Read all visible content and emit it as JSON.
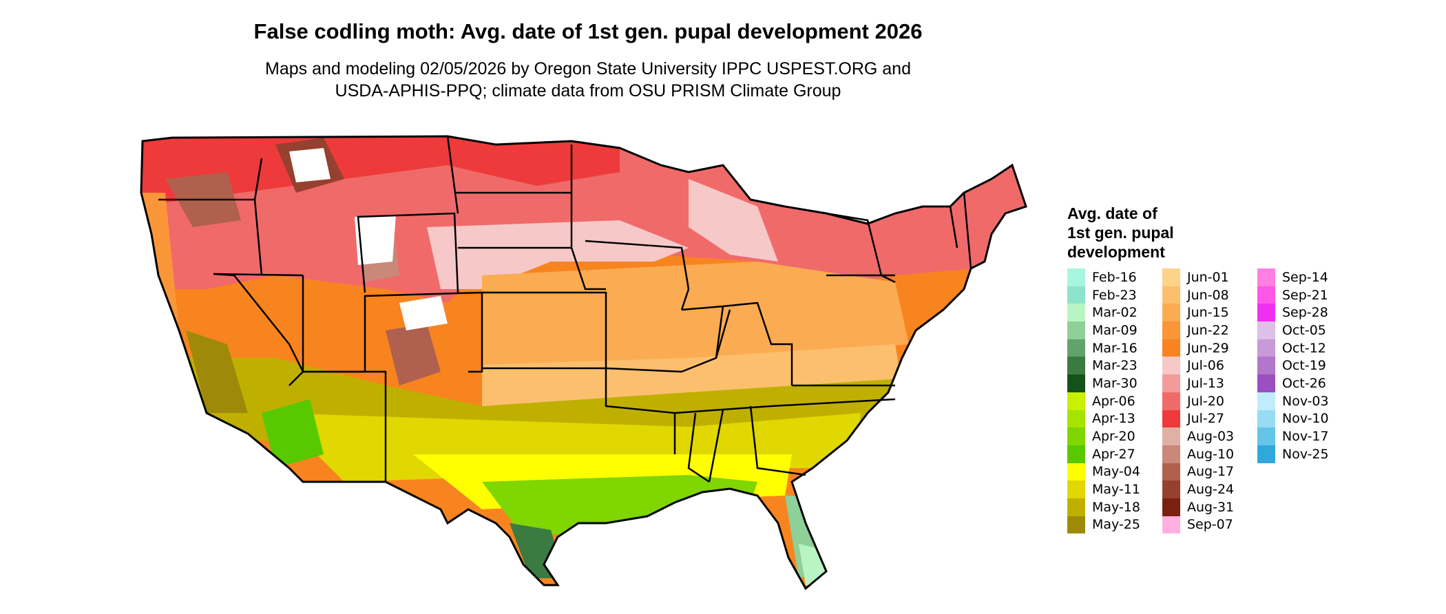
{
  "title": "False codling moth: Avg. date of 1st gen. pupal development 2026",
  "subtitle_lines": [
    "Maps and modeling 02/05/2026 by Oregon State University IPPC USPEST.ORG and",
    "USDA-APHIS-PPQ; climate data from OSU PRISM Climate Group"
  ],
  "legend": {
    "title_lines": [
      "Avg. date of",
      "1st gen. pupal",
      "development"
    ],
    "columns": [
      [
        {
          "label": "Feb-16",
          "color": "#a8f5e0"
        },
        {
          "label": "Feb-23",
          "color": "#8ee3cc"
        },
        {
          "label": "Mar-02",
          "color": "#b9f5c4"
        },
        {
          "label": "Mar-09",
          "color": "#8fcf98"
        },
        {
          "label": "Mar-16",
          "color": "#63a26d"
        },
        {
          "label": "Mar-23",
          "color": "#3b7a41"
        },
        {
          "label": "Mar-30",
          "color": "#14521a"
        },
        {
          "label": "Apr-06",
          "color": "#c8f000"
        },
        {
          "label": "Apr-13",
          "color": "#a6e400"
        },
        {
          "label": "Apr-20",
          "color": "#7fd600"
        },
        {
          "label": "Apr-27",
          "color": "#58c800"
        },
        {
          "label": "May-04",
          "color": "#ffff00"
        },
        {
          "label": "May-11",
          "color": "#e0d800"
        },
        {
          "label": "May-18",
          "color": "#bfb000"
        },
        {
          "label": "May-25",
          "color": "#9e8a08"
        }
      ],
      [
        {
          "label": "Jun-01",
          "color": "#fdd38a"
        },
        {
          "label": "Jun-08",
          "color": "#fcbf6e"
        },
        {
          "label": "Jun-15",
          "color": "#fbab52"
        },
        {
          "label": "Jun-22",
          "color": "#fa9638"
        },
        {
          "label": "Jun-29",
          "color": "#f88420"
        },
        {
          "label": "Jul-06",
          "color": "#f6c8c8"
        },
        {
          "label": "Jul-13",
          "color": "#f39a9a"
        },
        {
          "label": "Jul-20",
          "color": "#f06a6a"
        },
        {
          "label": "Jul-27",
          "color": "#ee3a3a"
        },
        {
          "label": "Aug-03",
          "color": "#e0b0a4"
        },
        {
          "label": "Aug-10",
          "color": "#c98878"
        },
        {
          "label": "Aug-17",
          "color": "#b0604e"
        },
        {
          "label": "Aug-24",
          "color": "#964030"
        },
        {
          "label": "Aug-31",
          "color": "#7a2010"
        },
        {
          "label": "Sep-07",
          "color": "#ffb0e0"
        }
      ],
      [
        {
          "label": "Sep-14",
          "color": "#ff80e0"
        },
        {
          "label": "Sep-21",
          "color": "#ff58e8"
        },
        {
          "label": "Sep-28",
          "color": "#f030f0"
        },
        {
          "label": "Oct-05",
          "color": "#dcc0e8"
        },
        {
          "label": "Oct-12",
          "color": "#c89ad8"
        },
        {
          "label": "Oct-19",
          "color": "#b276cc"
        },
        {
          "label": "Oct-26",
          "color": "#9a50c0"
        },
        {
          "label": "Nov-03",
          "color": "#c0ecfb"
        },
        {
          "label": "Nov-10",
          "color": "#98dcf4"
        },
        {
          "label": "Nov-17",
          "color": "#64c4ea"
        },
        {
          "label": "Nov-25",
          "color": "#30a8dc"
        }
      ]
    ]
  }
}
